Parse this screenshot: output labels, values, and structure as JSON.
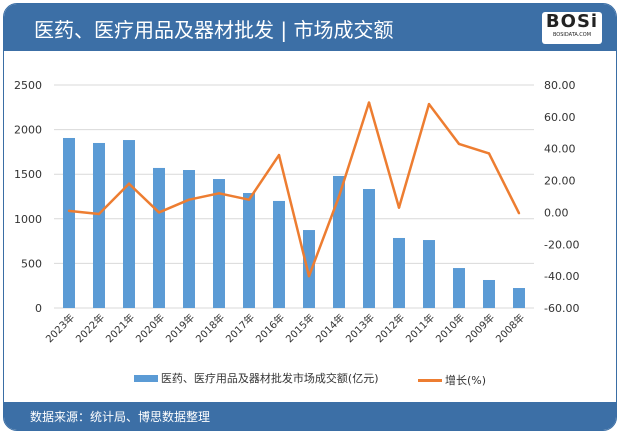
{
  "header": {
    "title": "医药、医疗用品及器材批发 | 市场成交额",
    "logo_text": "BOSi",
    "logo_sub": "BOSIDATA.COM"
  },
  "footer": {
    "source": "数据来源：统计局、博思数据整理"
  },
  "chart_data": {
    "type": "bar+line",
    "categories": [
      "2023年",
      "2022年",
      "2021年",
      "2020年",
      "2019年",
      "2018年",
      "2017年",
      "2016年",
      "2015年",
      "2014年",
      "2013年",
      "2012年",
      "2011年",
      "2010年",
      "2009年",
      "2008年"
    ],
    "series": [
      {
        "name": "医药、医疗用品及器材批发市场成交额(亿元)",
        "type": "bar",
        "axis": "left",
        "color": "#5b9bd5",
        "values": [
          1906,
          1850,
          1883,
          1570,
          1547,
          1446,
          1289,
          1200,
          874,
          1480,
          1334,
          785,
          762,
          448,
          314,
          224
        ]
      },
      {
        "name": "增长(%)",
        "type": "line",
        "axis": "right",
        "color": "#ed7d31",
        "values": [
          1.0,
          -1.0,
          18.0,
          0.0,
          8.0,
          12.0,
          8.0,
          36.0,
          -40.0,
          10.0,
          69.0,
          3.0,
          68.0,
          43.0,
          37.0,
          -0.5
        ]
      }
    ],
    "y_left": {
      "min": 0,
      "max": 2500,
      "ticks": [
        "0",
        "500",
        "1000",
        "1500",
        "2000",
        "2500"
      ]
    },
    "y_right": {
      "min": -60,
      "max": 80,
      "ticks": [
        "-60.00",
        "-40.00",
        "-20.00",
        "0.00",
        "20.00",
        "40.00",
        "60.00",
        "80.00"
      ]
    },
    "grid": true,
    "legend": "bottom"
  }
}
